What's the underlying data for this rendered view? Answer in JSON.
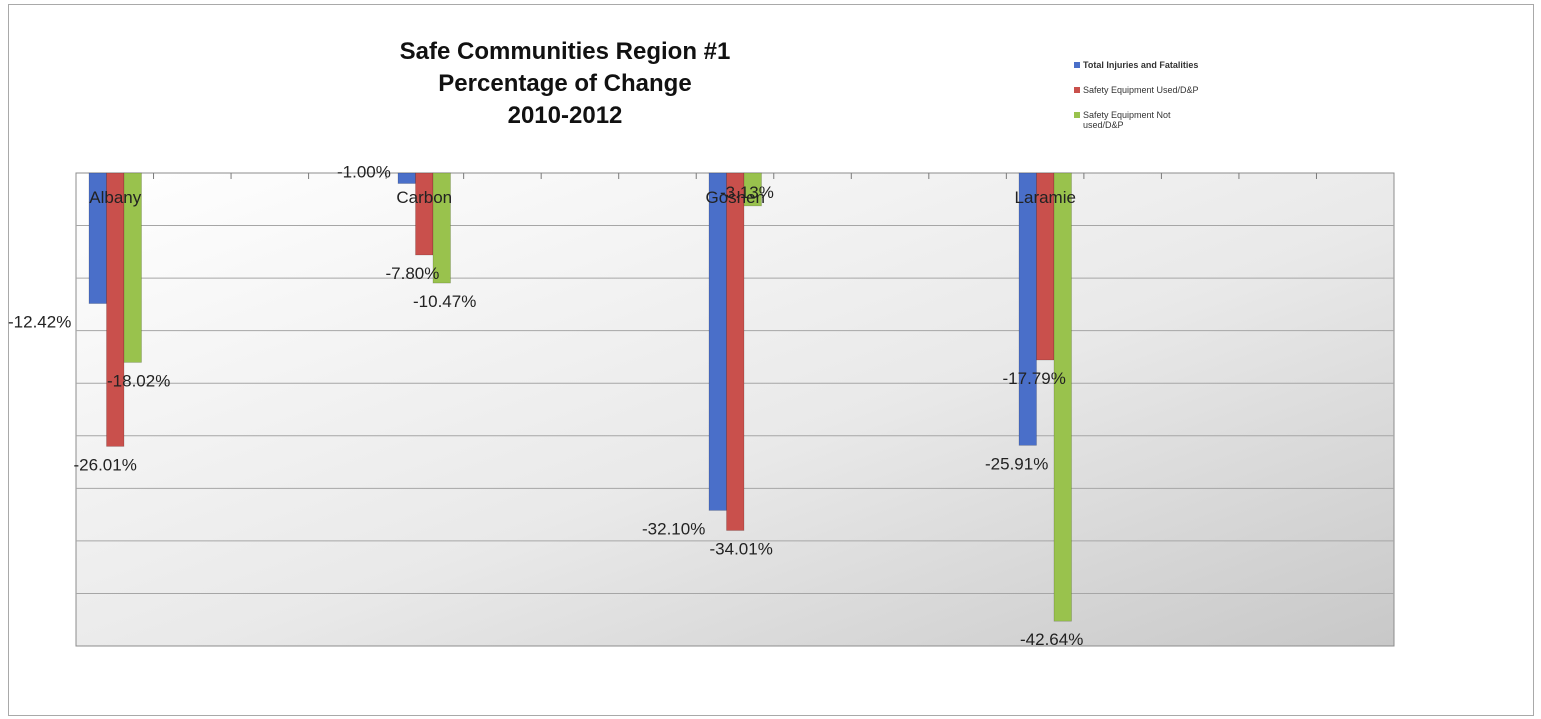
{
  "chart_data": {
    "type": "bar",
    "title_lines": [
      "Safe Communities Region #1",
      "Percentage of Change",
      "2010-2012"
    ],
    "categories": [
      "Albany",
      "Carbon",
      "Goshen",
      "Laramie"
    ],
    "series": [
      {
        "name": "Total Injuries and Fatalities",
        "color": "#4a6fc9",
        "values": [
          -12.42,
          -1.0,
          -32.1,
          -25.91
        ]
      },
      {
        "name": "Safety Equipment Used/D&P",
        "color": "#c9504c",
        "values": [
          -26.01,
          -7.8,
          -34.01,
          -17.79
        ]
      },
      {
        "name": "Safety Equipment Not used/D&P",
        "color": "#99c24d",
        "values": [
          -18.02,
          -10.47,
          -3.13,
          -42.64
        ]
      }
    ],
    "data_labels": {
      "Albany": [
        "-12.42%",
        "-26.01%",
        "-18.02%"
      ],
      "Carbon": [
        "-1.00%",
        "-7.80%",
        "-10.47%"
      ],
      "Goshen": [
        "-32.10%",
        "-34.01%",
        "-3.13%"
      ],
      "Laramie": [
        "-25.91%",
        "-17.79%",
        "-42.64%"
      ]
    },
    "ylim": [
      -45,
      0
    ],
    "grid": true,
    "legend_position": "top-right"
  }
}
